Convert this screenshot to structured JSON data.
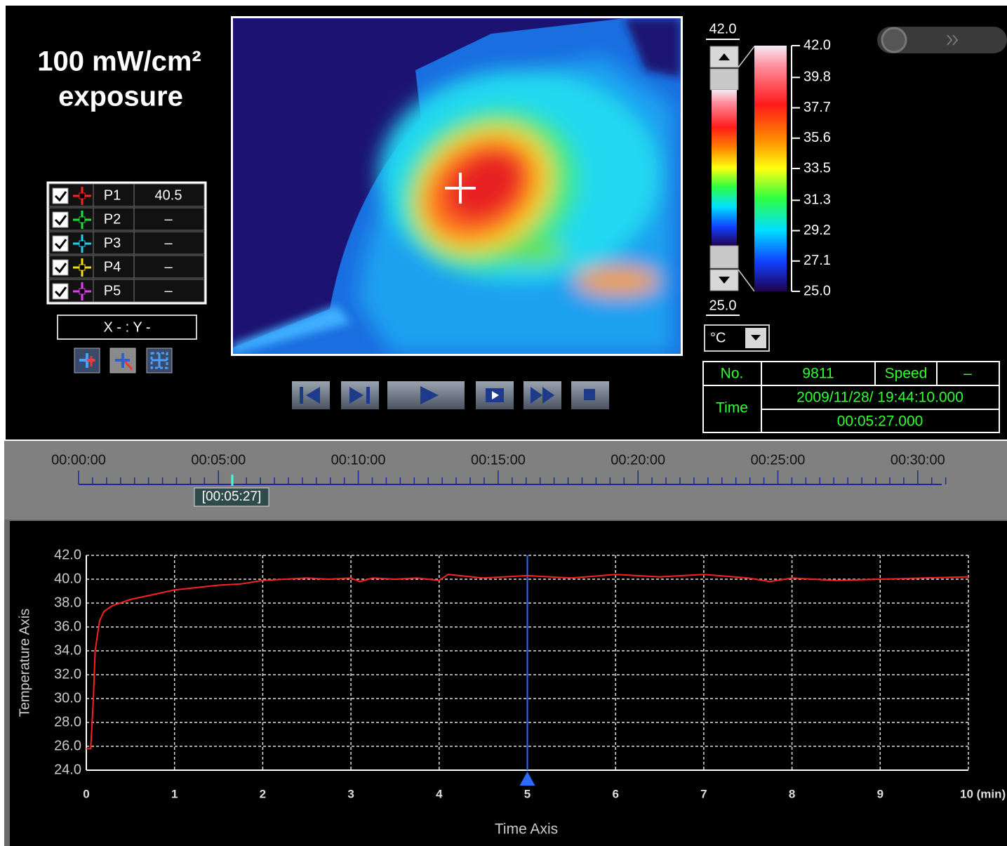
{
  "overlay": {
    "title": "100 mW/cm²",
    "subtitle": "exposure"
  },
  "points": [
    {
      "name": "P1",
      "color": "#ff2020",
      "value": "40.5"
    },
    {
      "name": "P2",
      "color": "#20e040",
      "value": "–"
    },
    {
      "name": "P3",
      "color": "#20d0f0",
      "value": "–"
    },
    {
      "name": "P4",
      "color": "#f0e020",
      "value": "–"
    },
    {
      "name": "P5",
      "color": "#e040f0",
      "value": "–"
    }
  ],
  "coordinates": "X - : Y -",
  "colorbar": {
    "range_max": "42.0",
    "range_min": "25.0",
    "ticks": [
      {
        "value": 42.0,
        "label": "42.0"
      },
      {
        "value": 39.8,
        "label": "39.8"
      },
      {
        "value": 37.7,
        "label": "37.7"
      },
      {
        "value": 35.6,
        "label": "35.6"
      },
      {
        "value": 33.5,
        "label": "33.5"
      },
      {
        "value": 31.3,
        "label": "31.3"
      },
      {
        "value": 29.2,
        "label": "29.2"
      },
      {
        "value": 27.1,
        "label": "27.1"
      },
      {
        "value": 25.0,
        "label": "25.0"
      }
    ]
  },
  "unit": "°C",
  "info": {
    "no_label": "No.",
    "no": "9811",
    "speed_label": "Speed",
    "speed": "–",
    "time_label": "Time",
    "datetime": "2009/11/28/ 19:44:10.000",
    "elapsed": "00:05:27.000"
  },
  "timeline": {
    "labels": [
      "00:00:00",
      "00:05:00",
      "00:10:00",
      "00:15:00",
      "00:20:00",
      "00:25:00",
      "00:30:00"
    ],
    "marker": "[00:05:27]"
  },
  "chart_data": {
    "type": "line",
    "x_label": "Time Axis",
    "y_label": "Temperature Axis",
    "x": [
      0,
      0.05,
      0.08,
      0.1,
      0.15,
      0.2,
      0.3,
      0.5,
      0.75,
      1.0,
      1.25,
      1.5,
      1.75,
      2.0,
      2.25,
      2.5,
      2.75,
      3.0,
      3.1,
      3.25,
      3.5,
      3.75,
      4.0,
      4.1,
      4.5,
      5.0,
      5.5,
      6.0,
      6.5,
      7.0,
      7.5,
      7.75,
      8.0,
      8.5,
      9.0,
      9.5,
      10.0
    ],
    "values": [
      25.8,
      25.8,
      30.0,
      34.0,
      36.5,
      37.3,
      37.8,
      38.3,
      38.7,
      39.1,
      39.3,
      39.5,
      39.6,
      39.9,
      40.0,
      40.1,
      40.0,
      40.1,
      39.8,
      40.1,
      40.0,
      40.1,
      39.9,
      40.4,
      40.1,
      40.3,
      40.1,
      40.4,
      40.2,
      40.4,
      40.1,
      39.8,
      40.1,
      39.9,
      40.0,
      40.1,
      40.2
    ],
    "color": "#ff2020",
    "xlim": [
      0,
      10
    ],
    "ylim": [
      24,
      42
    ],
    "xticks": [
      0,
      1,
      2,
      3,
      4,
      5,
      6,
      7,
      8,
      9,
      {
        "value": 10,
        "label": "10 (min)"
      }
    ],
    "yticks": [
      {
        "value": 24,
        "label": "24.0"
      },
      {
        "value": 26,
        "label": "26.0"
      },
      {
        "value": 28,
        "label": "28.0"
      },
      {
        "value": 30,
        "label": "30.0"
      },
      {
        "value": 32,
        "label": "32.0"
      },
      {
        "value": 34,
        "label": "34.0"
      },
      {
        "value": 36,
        "label": "36.0"
      },
      {
        "value": 38,
        "label": "38.0"
      },
      {
        "value": 40,
        "label": "40.0"
      },
      {
        "value": 42,
        "label": "42.0"
      }
    ],
    "grid": true,
    "cursor_x": 5,
    "cursor_color": "#2a6cff"
  }
}
